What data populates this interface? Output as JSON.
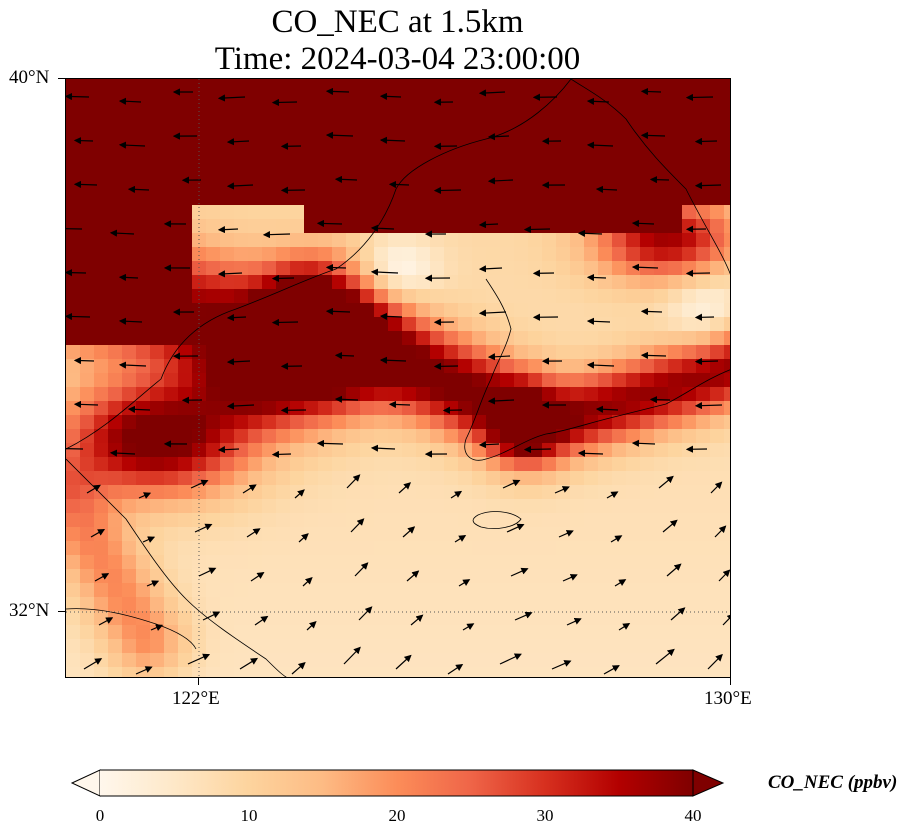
{
  "title": {
    "line1": "CO_NEC at 1.5km",
    "line2": "Time: 2024-03-04 23:00:00"
  },
  "map": {
    "lat_range": [
      31,
      40
    ],
    "lon_range": [
      119,
      130
    ],
    "lat_ticks": [
      {
        "value": 40,
        "label": "40°N"
      },
      {
        "value": 32,
        "label": "32°N"
      }
    ],
    "lon_ticks": [
      {
        "value": 122,
        "label": "122°E"
      },
      {
        "value": 130,
        "label": "130°E"
      }
    ],
    "gridlines": "dotted at 122°E and 32°N"
  },
  "colorbar": {
    "label": "CO_NEC (ppbv)",
    "colormap": "OrRd",
    "min": 0,
    "max": 40,
    "extend": "both",
    "ticks": [
      "0",
      "10",
      "20",
      "30",
      "40"
    ],
    "colors": [
      "#fff7ec",
      "#fee8c8",
      "#fdd49e",
      "#fdbb84",
      "#fc8d59",
      "#ef6548",
      "#d7301f",
      "#b30000",
      "#7f0000"
    ]
  },
  "chart_data": {
    "type": "heatmap",
    "title": "CO_NEC at 1.5km Time: 2024-03-04 23:00:00",
    "variable": "CO_NEC",
    "units": "ppbv",
    "value_range": [
      0,
      40
    ],
    "features": [
      {
        "region": "north (Bohai / Liaoning / North Korea)",
        "approx_value": ">=40"
      },
      {
        "region": "band across Yellow Sea near 35-36°N",
        "approx_value": "30-40"
      },
      {
        "region": "band over Korean peninsula south coast near 34.5°N",
        "approx_value": "30-40"
      },
      {
        "region": "plume 33.5-35°N, 119.5-122°E",
        "approx_value": "35-40"
      },
      {
        "region": "southern East China Sea",
        "approx_value": "5-15"
      }
    ],
    "wind_vectors": "black arrows overlaid"
  }
}
